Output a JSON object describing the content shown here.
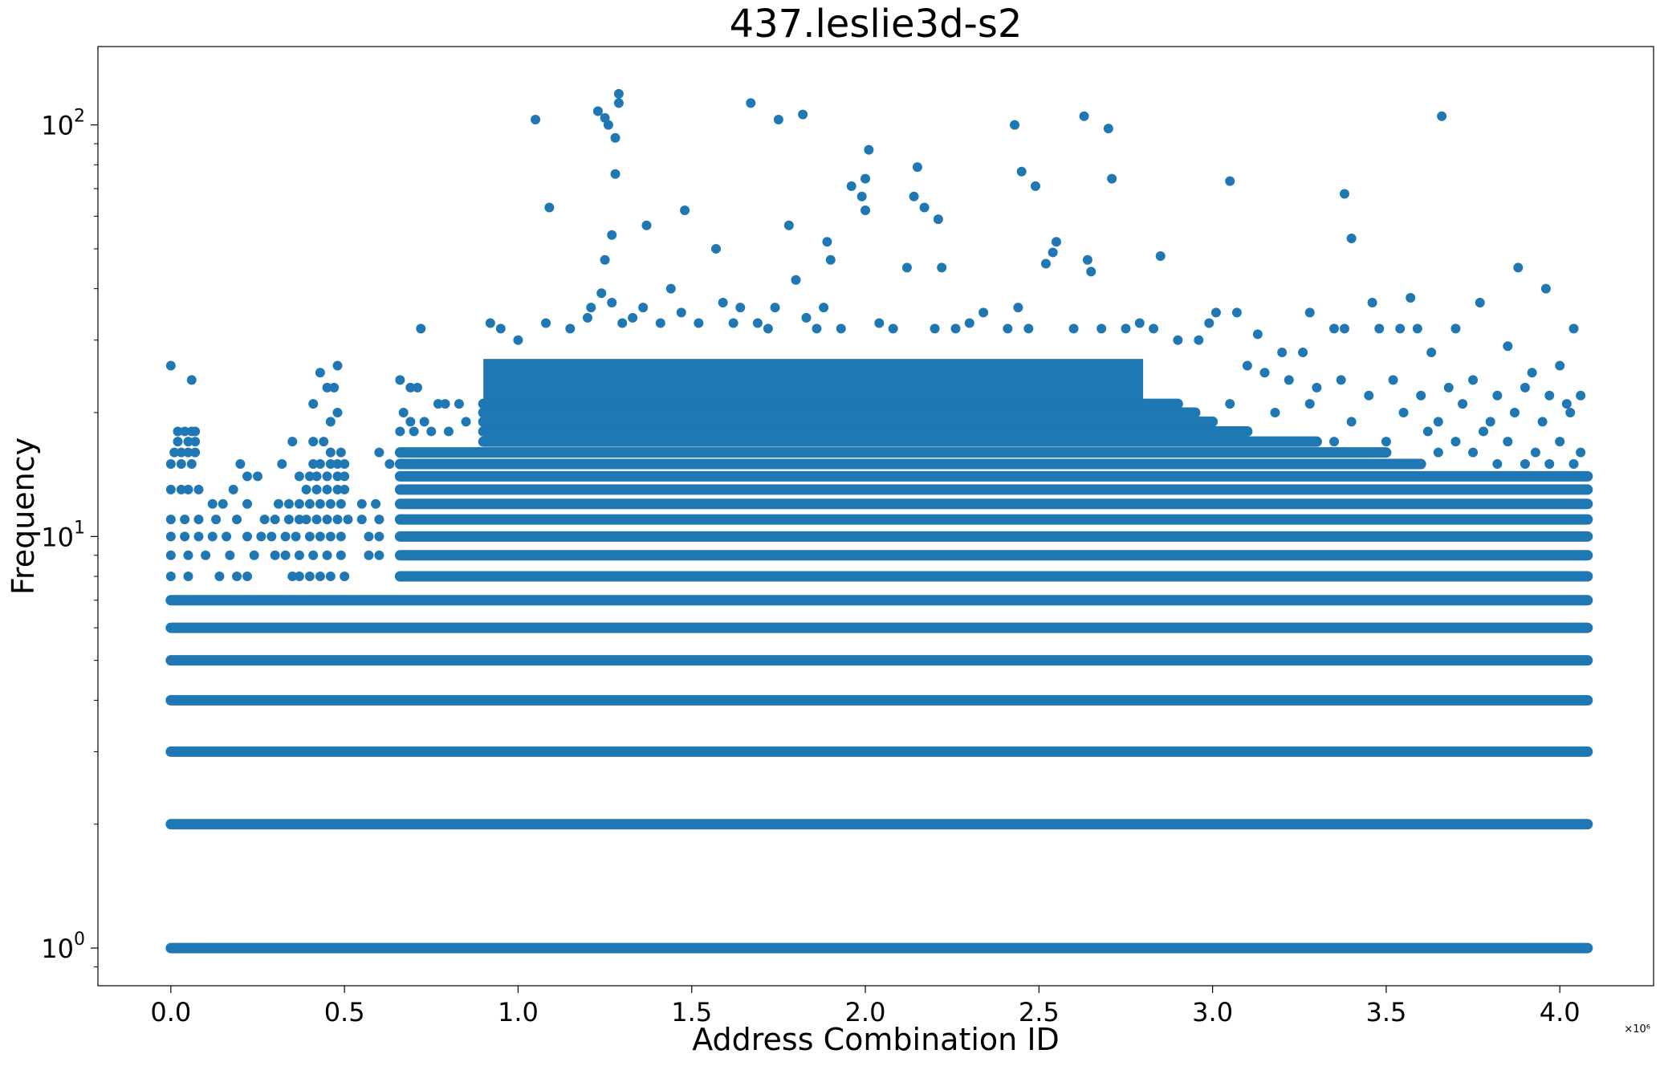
{
  "chart_data": {
    "type": "scatter",
    "title": "437.leslie3d-s2",
    "xlabel": "Address Combination ID",
    "ylabel": "Frequency",
    "x_offset_text": "×10⁶",
    "xlim": [
      -0.21,
      4.27
    ],
    "ylim": [
      0.81,
      155
    ],
    "yscale": "log",
    "x_unit_multiplier": 1000000,
    "xticks": [
      {
        "value": 0.0,
        "label": "0.0"
      },
      {
        "value": 0.5,
        "label": "0.5"
      },
      {
        "value": 1.0,
        "label": "1.0"
      },
      {
        "value": 1.5,
        "label": "1.5"
      },
      {
        "value": 2.0,
        "label": "2.0"
      },
      {
        "value": 2.5,
        "label": "2.5"
      },
      {
        "value": 3.0,
        "label": "3.0"
      },
      {
        "value": 3.5,
        "label": "3.5"
      },
      {
        "value": 4.0,
        "label": "4.0"
      }
    ],
    "yticks": [
      {
        "value": 1,
        "base": "10",
        "exp": "0"
      },
      {
        "value": 10,
        "base": "10",
        "exp": "1"
      },
      {
        "value": 100,
        "base": "10",
        "exp": "2"
      }
    ],
    "grid": false,
    "legend": "none",
    "marker_color": "#1f77b4",
    "bands": [
      {
        "y": 1,
        "x_start": 0.0,
        "x_end": 4.08
      },
      {
        "y": 2,
        "x_start": 0.0,
        "x_end": 4.08
      },
      {
        "y": 3,
        "x_start": 0.0,
        "x_end": 4.08
      },
      {
        "y": 4,
        "x_start": 0.0,
        "x_end": 4.08
      },
      {
        "y": 5,
        "x_start": 0.0,
        "x_end": 4.08
      },
      {
        "y": 6,
        "x_start": 0.0,
        "x_end": 4.08
      },
      {
        "y": 7,
        "x_start": 0.0,
        "x_end": 4.08
      },
      {
        "y": 8,
        "x_start": 0.66,
        "x_end": 4.08
      },
      {
        "y": 9,
        "x_start": 0.66,
        "x_end": 4.08
      },
      {
        "y": 10,
        "x_start": 0.66,
        "x_end": 4.08
      },
      {
        "y": 11,
        "x_start": 0.66,
        "x_end": 4.08
      },
      {
        "y": 12,
        "x_start": 0.66,
        "x_end": 4.08
      },
      {
        "y": 13,
        "x_start": 0.66,
        "x_end": 4.08
      },
      {
        "y": 14,
        "x_start": 0.66,
        "x_end": 4.08
      },
      {
        "y": 15,
        "x_start": 0.66,
        "x_end": 3.6
      },
      {
        "y": 16,
        "x_start": 0.66,
        "x_end": 3.5
      },
      {
        "y": 17,
        "x_start": 0.9,
        "x_end": 3.3
      },
      {
        "y": 18,
        "x_start": 0.9,
        "x_end": 3.1
      },
      {
        "y": 19,
        "x_start": 0.9,
        "x_end": 3.0
      },
      {
        "y": 20,
        "x_start": 0.9,
        "x_end": 2.95
      },
      {
        "y": 21,
        "x_start": 0.9,
        "x_end": 2.9
      }
    ],
    "dense_block": {
      "x_start": 0.9,
      "x_end": 2.8,
      "y_min": 17,
      "y_max": 27
    },
    "points": [
      {
        "x": 0.0,
        "y": 26
      },
      {
        "x": 0.06,
        "y": 24
      },
      {
        "x": 0.02,
        "y": 18
      },
      {
        "x": 0.04,
        "y": 18
      },
      {
        "x": 0.06,
        "y": 18
      },
      {
        "x": 0.07,
        "y": 18
      },
      {
        "x": 0.02,
        "y": 17
      },
      {
        "x": 0.05,
        "y": 17
      },
      {
        "x": 0.07,
        "y": 17
      },
      {
        "x": 0.01,
        "y": 16
      },
      {
        "x": 0.03,
        "y": 16
      },
      {
        "x": 0.05,
        "y": 16
      },
      {
        "x": 0.07,
        "y": 16
      },
      {
        "x": 0.0,
        "y": 15
      },
      {
        "x": 0.03,
        "y": 15
      },
      {
        "x": 0.06,
        "y": 15
      },
      {
        "x": 0.2,
        "y": 15
      },
      {
        "x": 0.22,
        "y": 14
      },
      {
        "x": 0.25,
        "y": 14
      },
      {
        "x": 0.0,
        "y": 13
      },
      {
        "x": 0.03,
        "y": 13
      },
      {
        "x": 0.05,
        "y": 13
      },
      {
        "x": 0.08,
        "y": 13
      },
      {
        "x": 0.18,
        "y": 13
      },
      {
        "x": 0.12,
        "y": 12
      },
      {
        "x": 0.15,
        "y": 12
      },
      {
        "x": 0.22,
        "y": 12
      },
      {
        "x": 0.0,
        "y": 11
      },
      {
        "x": 0.04,
        "y": 11
      },
      {
        "x": 0.08,
        "y": 11
      },
      {
        "x": 0.13,
        "y": 11
      },
      {
        "x": 0.19,
        "y": 11
      },
      {
        "x": 0.27,
        "y": 11
      },
      {
        "x": 0.0,
        "y": 10
      },
      {
        "x": 0.04,
        "y": 10
      },
      {
        "x": 0.08,
        "y": 10
      },
      {
        "x": 0.12,
        "y": 10
      },
      {
        "x": 0.16,
        "y": 10
      },
      {
        "x": 0.22,
        "y": 10
      },
      {
        "x": 0.26,
        "y": 10
      },
      {
        "x": 0.0,
        "y": 9
      },
      {
        "x": 0.05,
        "y": 9
      },
      {
        "x": 0.1,
        "y": 9
      },
      {
        "x": 0.17,
        "y": 9
      },
      {
        "x": 0.24,
        "y": 9
      },
      {
        "x": 0.0,
        "y": 8
      },
      {
        "x": 0.05,
        "y": 8
      },
      {
        "x": 0.14,
        "y": 8
      },
      {
        "x": 0.19,
        "y": 8
      },
      {
        "x": 0.22,
        "y": 8
      },
      {
        "x": 0.35,
        "y": 17
      },
      {
        "x": 0.32,
        "y": 15
      },
      {
        "x": 0.37,
        "y": 14
      },
      {
        "x": 0.31,
        "y": 12
      },
      {
        "x": 0.34,
        "y": 12
      },
      {
        "x": 0.37,
        "y": 12
      },
      {
        "x": 0.3,
        "y": 11
      },
      {
        "x": 0.34,
        "y": 11
      },
      {
        "x": 0.37,
        "y": 11
      },
      {
        "x": 0.29,
        "y": 10
      },
      {
        "x": 0.33,
        "y": 10
      },
      {
        "x": 0.36,
        "y": 10
      },
      {
        "x": 0.3,
        "y": 9
      },
      {
        "x": 0.33,
        "y": 9
      },
      {
        "x": 0.37,
        "y": 9
      },
      {
        "x": 0.35,
        "y": 8
      },
      {
        "x": 0.37,
        "y": 8
      },
      {
        "x": 0.43,
        "y": 25
      },
      {
        "x": 0.48,
        "y": 26
      },
      {
        "x": 0.45,
        "y": 23
      },
      {
        "x": 0.47,
        "y": 23
      },
      {
        "x": 0.41,
        "y": 21
      },
      {
        "x": 0.46,
        "y": 19
      },
      {
        "x": 0.48,
        "y": 20
      },
      {
        "x": 0.41,
        "y": 17
      },
      {
        "x": 0.44,
        "y": 17
      },
      {
        "x": 0.46,
        "y": 16
      },
      {
        "x": 0.49,
        "y": 16
      },
      {
        "x": 0.41,
        "y": 15
      },
      {
        "x": 0.43,
        "y": 15
      },
      {
        "x": 0.46,
        "y": 15
      },
      {
        "x": 0.48,
        "y": 15
      },
      {
        "x": 0.5,
        "y": 15
      },
      {
        "x": 0.4,
        "y": 14
      },
      {
        "x": 0.42,
        "y": 14
      },
      {
        "x": 0.45,
        "y": 14
      },
      {
        "x": 0.48,
        "y": 14
      },
      {
        "x": 0.5,
        "y": 14
      },
      {
        "x": 0.39,
        "y": 13
      },
      {
        "x": 0.42,
        "y": 13
      },
      {
        "x": 0.45,
        "y": 13
      },
      {
        "x": 0.48,
        "y": 13
      },
      {
        "x": 0.5,
        "y": 13
      },
      {
        "x": 0.4,
        "y": 12
      },
      {
        "x": 0.43,
        "y": 12
      },
      {
        "x": 0.46,
        "y": 12
      },
      {
        "x": 0.49,
        "y": 12
      },
      {
        "x": 0.39,
        "y": 11
      },
      {
        "x": 0.42,
        "y": 11
      },
      {
        "x": 0.45,
        "y": 11
      },
      {
        "x": 0.48,
        "y": 11
      },
      {
        "x": 0.51,
        "y": 11
      },
      {
        "x": 0.4,
        "y": 10
      },
      {
        "x": 0.43,
        "y": 10
      },
      {
        "x": 0.46,
        "y": 10
      },
      {
        "x": 0.49,
        "y": 10
      },
      {
        "x": 0.41,
        "y": 9
      },
      {
        "x": 0.45,
        "y": 9
      },
      {
        "x": 0.49,
        "y": 9
      },
      {
        "x": 0.4,
        "y": 8
      },
      {
        "x": 0.43,
        "y": 8
      },
      {
        "x": 0.46,
        "y": 8
      },
      {
        "x": 0.5,
        "y": 8
      },
      {
        "x": 0.6,
        "y": 16
      },
      {
        "x": 0.63,
        "y": 15
      },
      {
        "x": 0.55,
        "y": 12
      },
      {
        "x": 0.59,
        "y": 12
      },
      {
        "x": 0.55,
        "y": 11
      },
      {
        "x": 0.6,
        "y": 11
      },
      {
        "x": 0.57,
        "y": 10
      },
      {
        "x": 0.6,
        "y": 10
      },
      {
        "x": 0.57,
        "y": 9
      },
      {
        "x": 0.6,
        "y": 9
      },
      {
        "x": 0.66,
        "y": 24
      },
      {
        "x": 0.69,
        "y": 23
      },
      {
        "x": 0.71,
        "y": 23
      },
      {
        "x": 0.67,
        "y": 20
      },
      {
        "x": 0.69,
        "y": 19
      },
      {
        "x": 0.73,
        "y": 19
      },
      {
        "x": 0.77,
        "y": 21
      },
      {
        "x": 0.79,
        "y": 21
      },
      {
        "x": 0.83,
        "y": 21
      },
      {
        "x": 0.66,
        "y": 18
      },
      {
        "x": 0.7,
        "y": 18
      },
      {
        "x": 0.75,
        "y": 18
      },
      {
        "x": 0.8,
        "y": 18
      },
      {
        "x": 0.85,
        "y": 19
      },
      {
        "x": 0.72,
        "y": 32
      },
      {
        "x": 0.92,
        "y": 33
      },
      {
        "x": 0.95,
        "y": 32
      },
      {
        "x": 1.0,
        "y": 30
      },
      {
        "x": 1.05,
        "y": 103
      },
      {
        "x": 1.08,
        "y": 33
      },
      {
        "x": 1.09,
        "y": 63
      },
      {
        "x": 1.15,
        "y": 32
      },
      {
        "x": 1.2,
        "y": 34
      },
      {
        "x": 1.21,
        "y": 36
      },
      {
        "x": 1.24,
        "y": 39
      },
      {
        "x": 1.23,
        "y": 108
      },
      {
        "x": 1.25,
        "y": 104
      },
      {
        "x": 1.26,
        "y": 100
      },
      {
        "x": 1.28,
        "y": 93
      },
      {
        "x": 1.29,
        "y": 113
      },
      {
        "x": 1.29,
        "y": 119
      },
      {
        "x": 1.28,
        "y": 76
      },
      {
        "x": 1.27,
        "y": 54
      },
      {
        "x": 1.25,
        "y": 47
      },
      {
        "x": 1.27,
        "y": 37
      },
      {
        "x": 1.3,
        "y": 33
      },
      {
        "x": 1.33,
        "y": 34
      },
      {
        "x": 1.36,
        "y": 36
      },
      {
        "x": 1.37,
        "y": 57
      },
      {
        "x": 1.41,
        "y": 33
      },
      {
        "x": 1.44,
        "y": 40
      },
      {
        "x": 1.47,
        "y": 35
      },
      {
        "x": 1.48,
        "y": 62
      },
      {
        "x": 1.52,
        "y": 33
      },
      {
        "x": 1.57,
        "y": 50
      },
      {
        "x": 1.59,
        "y": 37
      },
      {
        "x": 1.62,
        "y": 33
      },
      {
        "x": 1.64,
        "y": 36
      },
      {
        "x": 1.67,
        "y": 113
      },
      {
        "x": 1.69,
        "y": 33
      },
      {
        "x": 1.72,
        "y": 32
      },
      {
        "x": 1.74,
        "y": 36
      },
      {
        "x": 1.75,
        "y": 103
      },
      {
        "x": 1.78,
        "y": 57
      },
      {
        "x": 1.8,
        "y": 42
      },
      {
        "x": 1.82,
        "y": 106
      },
      {
        "x": 1.83,
        "y": 34
      },
      {
        "x": 1.86,
        "y": 32
      },
      {
        "x": 1.88,
        "y": 36
      },
      {
        "x": 1.89,
        "y": 52
      },
      {
        "x": 1.9,
        "y": 47
      },
      {
        "x": 1.93,
        "y": 32
      },
      {
        "x": 1.96,
        "y": 71
      },
      {
        "x": 1.99,
        "y": 67
      },
      {
        "x": 2.0,
        "y": 62
      },
      {
        "x": 2.0,
        "y": 74
      },
      {
        "x": 2.01,
        "y": 87
      },
      {
        "x": 2.04,
        "y": 33
      },
      {
        "x": 2.08,
        "y": 32
      },
      {
        "x": 2.12,
        "y": 45
      },
      {
        "x": 2.14,
        "y": 67
      },
      {
        "x": 2.15,
        "y": 79
      },
      {
        "x": 2.17,
        "y": 63
      },
      {
        "x": 2.2,
        "y": 32
      },
      {
        "x": 2.21,
        "y": 59
      },
      {
        "x": 2.22,
        "y": 45
      },
      {
        "x": 2.26,
        "y": 32
      },
      {
        "x": 2.3,
        "y": 33
      },
      {
        "x": 2.34,
        "y": 35
      },
      {
        "x": 2.41,
        "y": 32
      },
      {
        "x": 2.43,
        "y": 100
      },
      {
        "x": 2.44,
        "y": 36
      },
      {
        "x": 2.45,
        "y": 77
      },
      {
        "x": 2.47,
        "y": 32
      },
      {
        "x": 2.49,
        "y": 71
      },
      {
        "x": 2.52,
        "y": 46
      },
      {
        "x": 2.54,
        "y": 49
      },
      {
        "x": 2.55,
        "y": 52
      },
      {
        "x": 2.6,
        "y": 32
      },
      {
        "x": 2.63,
        "y": 105
      },
      {
        "x": 2.64,
        "y": 47
      },
      {
        "x": 2.65,
        "y": 44
      },
      {
        "x": 2.68,
        "y": 32
      },
      {
        "x": 2.7,
        "y": 98
      },
      {
        "x": 2.71,
        "y": 74
      },
      {
        "x": 2.75,
        "y": 32
      },
      {
        "x": 2.79,
        "y": 33
      },
      {
        "x": 2.83,
        "y": 32
      },
      {
        "x": 2.85,
        "y": 48
      },
      {
        "x": 2.9,
        "y": 30
      },
      {
        "x": 2.96,
        "y": 30
      },
      {
        "x": 2.99,
        "y": 33
      },
      {
        "x": 3.01,
        "y": 35
      },
      {
        "x": 3.05,
        "y": 73
      },
      {
        "x": 3.07,
        "y": 35
      },
      {
        "x": 3.13,
        "y": 31
      },
      {
        "x": 3.2,
        "y": 28
      },
      {
        "x": 3.26,
        "y": 28
      },
      {
        "x": 3.28,
        "y": 35
      },
      {
        "x": 3.35,
        "y": 32
      },
      {
        "x": 3.38,
        "y": 32
      },
      {
        "x": 3.38,
        "y": 68
      },
      {
        "x": 3.4,
        "y": 53
      },
      {
        "x": 3.46,
        "y": 37
      },
      {
        "x": 3.48,
        "y": 32
      },
      {
        "x": 3.54,
        "y": 32
      },
      {
        "x": 3.57,
        "y": 38
      },
      {
        "x": 3.59,
        "y": 32
      },
      {
        "x": 3.63,
        "y": 28
      },
      {
        "x": 3.66,
        "y": 105
      },
      {
        "x": 3.7,
        "y": 32
      },
      {
        "x": 3.77,
        "y": 37
      },
      {
        "x": 3.85,
        "y": 29
      },
      {
        "x": 3.88,
        "y": 45
      },
      {
        "x": 3.92,
        "y": 25
      },
      {
        "x": 3.96,
        "y": 40
      },
      {
        "x": 4.0,
        "y": 26
      },
      {
        "x": 4.04,
        "y": 32
      },
      {
        "x": 4.06,
        "y": 22
      },
      {
        "x": 4.02,
        "y": 21
      },
      {
        "x": 3.1,
        "y": 26
      },
      {
        "x": 3.15,
        "y": 25
      },
      {
        "x": 3.22,
        "y": 24
      },
      {
        "x": 3.3,
        "y": 23
      },
      {
        "x": 3.37,
        "y": 24
      },
      {
        "x": 3.45,
        "y": 22
      },
      {
        "x": 3.52,
        "y": 24
      },
      {
        "x": 3.6,
        "y": 22
      },
      {
        "x": 3.68,
        "y": 23
      },
      {
        "x": 3.75,
        "y": 24
      },
      {
        "x": 3.82,
        "y": 22
      },
      {
        "x": 3.9,
        "y": 23
      },
      {
        "x": 3.97,
        "y": 22
      },
      {
        "x": 3.05,
        "y": 21
      },
      {
        "x": 3.18,
        "y": 20
      },
      {
        "x": 3.28,
        "y": 21
      },
      {
        "x": 3.4,
        "y": 19
      },
      {
        "x": 3.55,
        "y": 20
      },
      {
        "x": 3.65,
        "y": 19
      },
      {
        "x": 3.72,
        "y": 21
      },
      {
        "x": 3.8,
        "y": 19
      },
      {
        "x": 3.87,
        "y": 20
      },
      {
        "x": 3.95,
        "y": 19
      },
      {
        "x": 4.03,
        "y": 20
      },
      {
        "x": 3.35,
        "y": 17
      },
      {
        "x": 3.5,
        "y": 17
      },
      {
        "x": 3.62,
        "y": 18
      },
      {
        "x": 3.7,
        "y": 17
      },
      {
        "x": 3.78,
        "y": 18
      },
      {
        "x": 3.85,
        "y": 17
      },
      {
        "x": 3.93,
        "y": 16
      },
      {
        "x": 4.0,
        "y": 17
      },
      {
        "x": 4.06,
        "y": 16
      },
      {
        "x": 3.65,
        "y": 16
      },
      {
        "x": 3.75,
        "y": 16
      },
      {
        "x": 3.82,
        "y": 15
      },
      {
        "x": 3.9,
        "y": 15
      },
      {
        "x": 3.97,
        "y": 15
      },
      {
        "x": 4.04,
        "y": 15
      }
    ]
  }
}
